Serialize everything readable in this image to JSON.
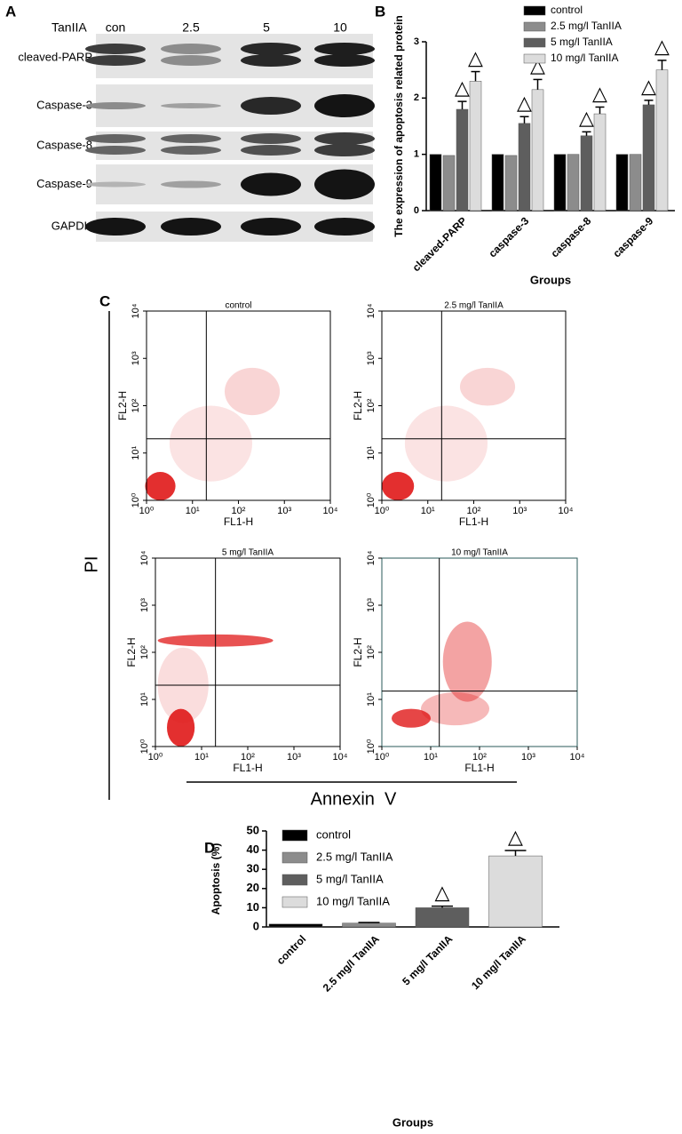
{
  "blot": {
    "panel_label": "A",
    "header": "TanIIA",
    "lanes": [
      "con",
      "2.5",
      "5",
      "10"
    ],
    "rows": [
      "cleaved-PARP",
      "Caspase-3",
      "Caspase-8",
      "Caspase-9",
      "GAPDH"
    ]
  },
  "flow_panel": {
    "panel_label": "C",
    "y_label": "PI",
    "x_label": "Annexin  V"
  },
  "chart_data": [
    {
      "type": "bar",
      "panel_label": "B",
      "y_label": "The expression of apoptosis related protein",
      "x_label": "Groups",
      "categories": [
        "cleaved-PARP",
        "caspase-3",
        "caspase-8",
        "caspase-9"
      ],
      "series": [
        {
          "name": "control",
          "color": "#000000",
          "values": [
            1,
            1,
            1,
            1
          ],
          "errors": [
            0,
            0,
            0,
            0
          ]
        },
        {
          "name": "2.5 mg/l TanIIA",
          "color": "#8c8c8c",
          "values": [
            0.98,
            0.98,
            1,
            1
          ],
          "errors": [
            0,
            0,
            0,
            0
          ]
        },
        {
          "name": "5 mg/l TanIIA",
          "color": "#5e5e5e",
          "values": [
            1.8,
            1.55,
            1.33,
            1.88
          ],
          "errors": [
            0.14,
            0.12,
            0.07,
            0.08
          ],
          "significant": true
        },
        {
          "name": "10 mg/l TanIIA",
          "color": "#dcdcdc",
          "values": [
            2.3,
            2.15,
            1.72,
            2.5
          ],
          "errors": [
            0.17,
            0.18,
            0.12,
            0.17
          ],
          "significant": true
        }
      ],
      "significance_marker": "△",
      "ylim": [
        0,
        3
      ],
      "yticks": [
        0,
        1,
        2,
        3
      ]
    },
    {
      "type": "flow",
      "title": "control",
      "x_label": "FL1-H",
      "y_label": "FL2-H",
      "xlim": [
        1,
        10000
      ],
      "ylim": [
        1,
        10000
      ],
      "log_scale": true,
      "quadrant": [
        20,
        20
      ],
      "xticks": [
        {
          "value": 1,
          "label": "10⁰"
        },
        {
          "value": 10,
          "label": "10¹"
        },
        {
          "value": 100,
          "label": "10²"
        },
        {
          "value": 1000,
          "label": "10³"
        },
        {
          "value": 10000,
          "label": "10⁴"
        }
      ],
      "yticks": [
        {
          "value": 1,
          "label": "10⁰"
        },
        {
          "value": 10,
          "label": "10¹"
        },
        {
          "value": 100,
          "label": "10²"
        },
        {
          "value": 1000,
          "label": "10³"
        },
        {
          "value": 10000,
          "label": "10⁴"
        }
      ]
    },
    {
      "type": "flow",
      "title": "2.5 mg/l TanIIA",
      "x_label": "FL1-H",
      "y_label": "FL2-H",
      "xlim": [
        1,
        10000
      ],
      "ylim": [
        1,
        10000
      ],
      "log_scale": true,
      "quadrant": [
        20,
        20
      ],
      "xticks": [
        {
          "value": 1,
          "label": "10⁰"
        },
        {
          "value": 10,
          "label": "10¹"
        },
        {
          "value": 100,
          "label": "10²"
        },
        {
          "value": 1000,
          "label": "10³"
        },
        {
          "value": 10000,
          "label": "10⁴"
        }
      ],
      "yticks": [
        {
          "value": 1,
          "label": "10⁰"
        },
        {
          "value": 10,
          "label": "10¹"
        },
        {
          "value": 100,
          "label": "10²"
        },
        {
          "value": 1000,
          "label": "10³"
        },
        {
          "value": 10000,
          "label": "10⁴"
        }
      ]
    },
    {
      "type": "flow",
      "title": "5 mg/l TanIIA",
      "x_label": "FL1-H",
      "y_label": "FL2-H",
      "xlim": [
        1,
        10000
      ],
      "ylim": [
        1,
        10000
      ],
      "log_scale": true,
      "quadrant": [
        20,
        20
      ],
      "xticks": [
        {
          "value": 1,
          "label": "10⁰"
        },
        {
          "value": 10,
          "label": "10¹"
        },
        {
          "value": 100,
          "label": "10²"
        },
        {
          "value": 1000,
          "label": "10³"
        },
        {
          "value": 10000,
          "label": "10⁴"
        }
      ],
      "yticks": [
        {
          "value": 1,
          "label": "10⁰"
        },
        {
          "value": 10,
          "label": "10¹"
        },
        {
          "value": 100,
          "label": "10²"
        },
        {
          "value": 1000,
          "label": "10³"
        },
        {
          "value": 10000,
          "label": "10⁴"
        }
      ]
    },
    {
      "type": "flow",
      "title": "10 mg/l TanIIA",
      "x_label": "FL1-H",
      "y_label": "FL2-H",
      "xlim": [
        1,
        10000
      ],
      "ylim": [
        1,
        10000
      ],
      "log_scale": true,
      "quadrant": [
        15,
        15
      ],
      "xticks": [
        {
          "value": 1,
          "label": "10⁰"
        },
        {
          "value": 10,
          "label": "10¹"
        },
        {
          "value": 100,
          "label": "10²"
        },
        {
          "value": 1000,
          "label": "10³"
        },
        {
          "value": 10000,
          "label": "10⁴"
        }
      ],
      "yticks": [
        {
          "value": 1,
          "label": "10⁰"
        },
        {
          "value": 10,
          "label": "10¹"
        },
        {
          "value": 100,
          "label": "10²"
        },
        {
          "value": 1000,
          "label": "10³"
        },
        {
          "value": 10000,
          "label": "10⁴"
        }
      ]
    },
    {
      "type": "bar",
      "panel_label": "D",
      "y_label": "Apoptosis (%)",
      "x_label": "Groups",
      "categories": [
        "control",
        "2.5 mg/l TanIIA",
        "5 mg/l TanIIA",
        "10 mg/l TanIIA"
      ],
      "values": [
        1.5,
        2,
        10,
        37
      ],
      "errors": [
        0,
        0.3,
        0.8,
        2.8
      ],
      "colors": [
        "#000000",
        "#8c8c8c",
        "#5e5e5e",
        "#dcdcdc"
      ],
      "significant": [
        false,
        false,
        true,
        true
      ],
      "significance_marker": "△",
      "ylim": [
        0,
        50
      ],
      "yticks": [
        0,
        10,
        20,
        30,
        40,
        50
      ]
    }
  ]
}
